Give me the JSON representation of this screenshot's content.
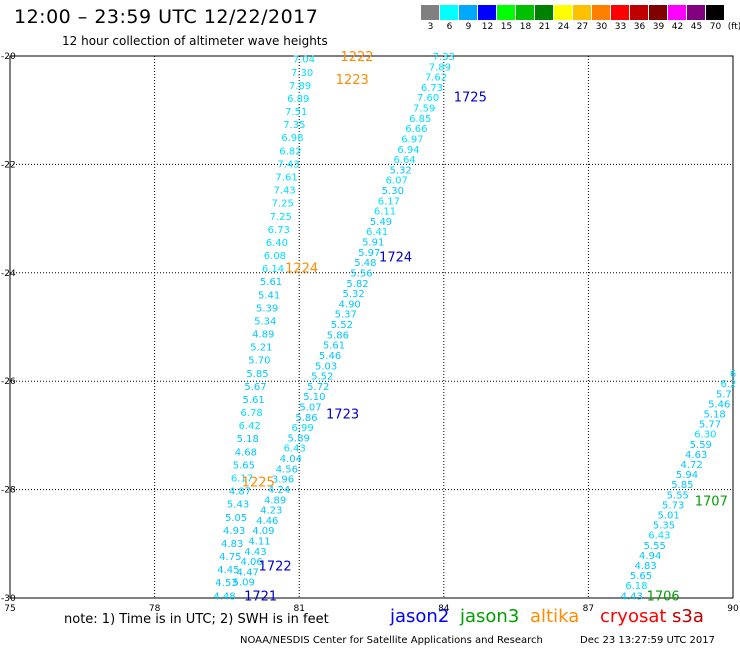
{
  "header": {
    "title": "12:00  –  23:59 UTC 12/22/2017",
    "subtitle": "12 hour collection of altimeter wave heights"
  },
  "color_scale": {
    "unit": "(ft)",
    "bins": [
      {
        "label": "3",
        "color": "#808080"
      },
      {
        "label": "6",
        "color": "#00ffff"
      },
      {
        "label": "9",
        "color": "#00a8ff"
      },
      {
        "label": "12",
        "color": "#0000ff"
      },
      {
        "label": "15",
        "color": "#00ff00"
      },
      {
        "label": "18",
        "color": "#00c000"
      },
      {
        "label": "21",
        "color": "#008000"
      },
      {
        "label": "24",
        "color": "#ffff00"
      },
      {
        "label": "27",
        "color": "#ffc000"
      },
      {
        "label": "30",
        "color": "#ff8000"
      },
      {
        "label": "33",
        "color": "#ff0000"
      },
      {
        "label": "36",
        "color": "#c00000"
      },
      {
        "label": "39",
        "color": "#800000"
      },
      {
        "label": "42",
        "color": "#ff00ff"
      },
      {
        "label": "45",
        "color": "#800080"
      },
      {
        "label": "70",
        "color": "#000000"
      }
    ]
  },
  "map": {
    "lon_range": [
      75,
      90
    ],
    "lat_range": [
      -30,
      -20
    ],
    "x_ticks": [
      "75",
      "78",
      "81",
      "84",
      "87",
      "90"
    ],
    "y_ticks": [
      "-20",
      "-22",
      "-24",
      "-26",
      "-28",
      "-30"
    ],
    "grid": true
  },
  "chart_data": {
    "type": "scatter",
    "xlabel": "",
    "ylabel": "",
    "tracks": [
      {
        "satellite": "jason2",
        "values": [
          "7.04",
          "7.30",
          "7.89",
          "6.89",
          "7.51",
          "7.35",
          "6.98",
          "6.82",
          "7.43",
          "7.61",
          "7.43",
          "7.25",
          "7.25",
          "6.73",
          "6.40",
          "6.08",
          "6.14",
          "5.61",
          "5.41",
          "5.39",
          "5.34",
          "4.89",
          "5.21",
          "5.70",
          "5.85",
          "5.67",
          "5.61",
          "6.78",
          "6.42",
          "5.18",
          "4.68",
          "5.65",
          "6.17",
          "4.87",
          "5.43",
          "5.05",
          "4.93",
          "4.83",
          "4.75",
          "4.45",
          "4.53",
          "4.48"
        ],
        "lat_start": -20.05,
        "lat_end": -29.95,
        "lon_start": 81.1,
        "lon_end": 79.45
      },
      {
        "satellite": "jason2",
        "values": [
          "7.33",
          "7.89",
          "7.62",
          "6.73",
          "7.60",
          "7.59",
          "6.85",
          "6.66",
          "6.97",
          "6.94",
          "6.64",
          "5.32",
          "6.07",
          "5.30",
          "6.17",
          "6.11",
          "5.49",
          "6.41",
          "5.91",
          "5.97",
          "5.48",
          "5.56",
          "5.82",
          "5.32",
          "4.90",
          "5.37",
          "5.52",
          "5.86",
          "5.61",
          "5.46",
          "5.03",
          "5.52",
          "5.72",
          "5.10",
          "5.07",
          "5.86",
          "6.99",
          "5.89",
          "6.43",
          "4.04",
          "4.56",
          "3.96",
          "4.24",
          "4.89",
          "4.23",
          "4.46",
          "4.09",
          "4.11",
          "4.43",
          "4.06",
          "4.47",
          "5.09"
        ],
        "lat_start": -20.0,
        "lat_end": -29.7,
        "lon_start": 84.0,
        "lon_end": 79.85
      },
      {
        "satellite": "jason2",
        "values": [
          "6",
          "6.2",
          "5.7",
          "5.46",
          "5.18",
          "5.77",
          "6.30",
          "5.59",
          "4.63",
          "4.72",
          "5.94",
          "5.85",
          "5.55",
          "5.73",
          "5.01",
          "5.35",
          "6.43",
          "5.55",
          "4.94",
          "4.83",
          "5.65",
          "6.18",
          "4.43"
        ],
        "lat_start": -25.85,
        "lat_end": -29.95,
        "lon_start": 90.0,
        "lon_end": 87.9
      }
    ],
    "time_labels": [
      {
        "text": "1222",
        "satellite": "altika",
        "lat": -20.0,
        "lon": 82.2
      },
      {
        "text": "1223",
        "satellite": "altika",
        "lat": -20.42,
        "lon": 82.1
      },
      {
        "text": "1725",
        "satellite": "jason2",
        "lat": -20.75,
        "lon": 84.55
      },
      {
        "text": "1724",
        "satellite": "jason2",
        "lat": -23.7,
        "lon": 83.0
      },
      {
        "text": "1224",
        "satellite": "altika",
        "lat": -23.9,
        "lon": 81.05
      },
      {
        "text": "1723",
        "satellite": "jason2",
        "lat": -26.6,
        "lon": 81.9
      },
      {
        "text": "1225",
        "satellite": "altika",
        "lat": -27.85,
        "lon": 80.15
      },
      {
        "text": "1707",
        "satellite": "jason3",
        "lat": -28.2,
        "lon": 89.55
      },
      {
        "text": "1722",
        "satellite": "jason2",
        "lat": -29.4,
        "lon": 80.5
      },
      {
        "text": "1721",
        "satellite": "jason2",
        "lat": -29.95,
        "lon": 80.2
      },
      {
        "text": "1706",
        "satellite": "jason3",
        "lat": -29.95,
        "lon": 88.55
      }
    ]
  },
  "legend": {
    "note": "note: 1) Time is in UTC; 2) SWH is in feet",
    "satellites": [
      {
        "name": "jason2",
        "color": "#0000ff"
      },
      {
        "name": "jason3",
        "color": "#00a000"
      },
      {
        "name": "altika",
        "color": "#ff8c00"
      },
      {
        "name": "cryosat",
        "color": "#ff0000"
      },
      {
        "name": "s3a",
        "color": "#c00000"
      }
    ]
  },
  "footer": {
    "credit": "NOAA/NESDIS Center for Satellite Applications and Research",
    "timestamp": "Dec 23 13:27:59 UTC 2017"
  },
  "colors": {
    "swh_6_9": "#00e0ff",
    "swh_3_6": "#00c8ff",
    "jason2_label": "#0000cc",
    "jason3_label": "#00a000",
    "altika_label": "#ff8c00"
  }
}
